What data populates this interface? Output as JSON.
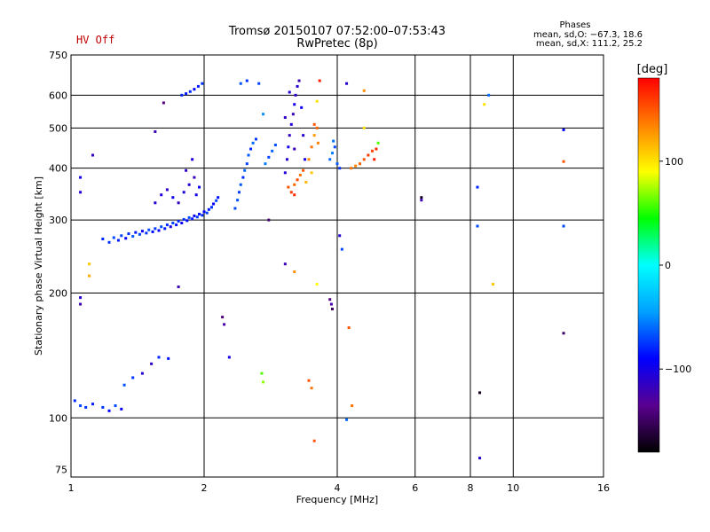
{
  "header": {
    "title": "Tromsø 20150107 07:52:00–07:53:43",
    "subtitle": "RwPretec (8p)",
    "status": "HV Off",
    "phases_title": "Phases",
    "phases_o": "mean, sd,O: −67.3, 18.6",
    "phases_x": "mean, sd,X: 111.2, 25.2"
  },
  "chart_data": {
    "type": "scatter",
    "xlabel": "Frequency [MHz]",
    "ylabel": "Stationary phase Virtual Height [km]",
    "xscale": "log",
    "yscale": "log",
    "xlim": [
      1,
      16
    ],
    "ylim": [
      72,
      750
    ],
    "xticks": [
      1,
      2,
      4,
      6,
      8,
      10,
      16
    ],
    "xtick_labels": [
      "1",
      "2",
      "4",
      "6",
      "8",
      "10",
      "16"
    ],
    "yticks": [
      75,
      100,
      200,
      300,
      400,
      500,
      600,
      750
    ],
    "ytick_labels": [
      "75",
      "100",
      "200",
      "300",
      "400",
      "500",
      "600",
      "750"
    ],
    "grid": true,
    "colorbar": {
      "label": "[deg]",
      "min": -180,
      "max": 180,
      "ticks": [
        100,
        0,
        -100
      ],
      "tick_labels": [
        "100",
        "0",
        "−100"
      ],
      "colormap": [
        "#000000",
        "#5a0090",
        "#0000ff",
        "#00a0ff",
        "#00ffff",
        "#00ff00",
        "#ffff00",
        "#ff8000",
        "#ff0000"
      ]
    },
    "points": [
      {
        "x": 1.18,
        "y": 270,
        "phase": -80
      },
      {
        "x": 1.22,
        "y": 265,
        "phase": -75
      },
      {
        "x": 1.25,
        "y": 272,
        "phase": -70
      },
      {
        "x": 1.28,
        "y": 268,
        "phase": -82
      },
      {
        "x": 1.3,
        "y": 275,
        "phase": -72
      },
      {
        "x": 1.33,
        "y": 271,
        "phase": -90
      },
      {
        "x": 1.35,
        "y": 278,
        "phase": -78
      },
      {
        "x": 1.38,
        "y": 274,
        "phase": -65
      },
      {
        "x": 1.4,
        "y": 280,
        "phase": -85
      },
      {
        "x": 1.43,
        "y": 277,
        "phase": -70
      },
      {
        "x": 1.45,
        "y": 282,
        "phase": -95
      },
      {
        "x": 1.48,
        "y": 279,
        "phase": -76
      },
      {
        "x": 1.5,
        "y": 284,
        "phase": -68
      },
      {
        "x": 1.53,
        "y": 281,
        "phase": -88
      },
      {
        "x": 1.55,
        "y": 286,
        "phase": -74
      },
      {
        "x": 1.58,
        "y": 283,
        "phase": -92
      },
      {
        "x": 1.6,
        "y": 289,
        "phase": -70
      },
      {
        "x": 1.63,
        "y": 286,
        "phase": -84
      },
      {
        "x": 1.65,
        "y": 292,
        "phase": -78
      },
      {
        "x": 1.68,
        "y": 289,
        "phase": -100
      },
      {
        "x": 1.7,
        "y": 295,
        "phase": -72
      },
      {
        "x": 1.73,
        "y": 292,
        "phase": -86
      },
      {
        "x": 1.75,
        "y": 298,
        "phase": -80
      },
      {
        "x": 1.78,
        "y": 295,
        "phase": -94
      },
      {
        "x": 1.8,
        "y": 301,
        "phase": -76
      },
      {
        "x": 1.83,
        "y": 299,
        "phase": -88
      },
      {
        "x": 1.85,
        "y": 304,
        "phase": -70
      },
      {
        "x": 1.88,
        "y": 302,
        "phase": -82
      },
      {
        "x": 1.9,
        "y": 307,
        "phase": -96
      },
      {
        "x": 1.93,
        "y": 305,
        "phase": -74
      },
      {
        "x": 1.95,
        "y": 310,
        "phase": -86
      },
      {
        "x": 1.98,
        "y": 308,
        "phase": -78
      },
      {
        "x": 2.0,
        "y": 314,
        "phase": -90
      },
      {
        "x": 2.03,
        "y": 312,
        "phase": -72
      },
      {
        "x": 2.05,
        "y": 318,
        "phase": -84
      },
      {
        "x": 2.08,
        "y": 322,
        "phase": -76
      },
      {
        "x": 2.1,
        "y": 328,
        "phase": -92
      },
      {
        "x": 2.13,
        "y": 334,
        "phase": -70
      },
      {
        "x": 2.15,
        "y": 340,
        "phase": -86
      },
      {
        "x": 1.55,
        "y": 330,
        "phase": -110
      },
      {
        "x": 1.6,
        "y": 345,
        "phase": -105
      },
      {
        "x": 1.65,
        "y": 355,
        "phase": -112
      },
      {
        "x": 1.7,
        "y": 340,
        "phase": -98
      },
      {
        "x": 1.75,
        "y": 330,
        "phase": -115
      },
      {
        "x": 1.8,
        "y": 350,
        "phase": -102
      },
      {
        "x": 1.85,
        "y": 365,
        "phase": -108
      },
      {
        "x": 1.9,
        "y": 380,
        "phase": -118
      },
      {
        "x": 1.95,
        "y": 360,
        "phase": -96
      },
      {
        "x": 1.82,
        "y": 395,
        "phase": -112
      },
      {
        "x": 1.88,
        "y": 420,
        "phase": -104
      },
      {
        "x": 1.92,
        "y": 345,
        "phase": -100
      },
      {
        "x": 1.78,
        "y": 600,
        "phase": -80
      },
      {
        "x": 1.82,
        "y": 605,
        "phase": -85
      },
      {
        "x": 1.86,
        "y": 612,
        "phase": -78
      },
      {
        "x": 1.9,
        "y": 620,
        "phase": -90
      },
      {
        "x": 1.94,
        "y": 630,
        "phase": -82
      },
      {
        "x": 1.98,
        "y": 640,
        "phase": -76
      },
      {
        "x": 2.35,
        "y": 320,
        "phase": -70
      },
      {
        "x": 2.38,
        "y": 335,
        "phase": -68
      },
      {
        "x": 2.4,
        "y": 350,
        "phase": -74
      },
      {
        "x": 2.42,
        "y": 365,
        "phase": -66
      },
      {
        "x": 2.45,
        "y": 380,
        "phase": -78
      },
      {
        "x": 2.47,
        "y": 395,
        "phase": -62
      },
      {
        "x": 2.5,
        "y": 410,
        "phase": -72
      },
      {
        "x": 2.52,
        "y": 430,
        "phase": -65
      },
      {
        "x": 2.55,
        "y": 445,
        "phase": -80
      },
      {
        "x": 2.58,
        "y": 460,
        "phase": -60
      },
      {
        "x": 2.62,
        "y": 470,
        "phase": -75
      },
      {
        "x": 2.66,
        "y": 640,
        "phase": -70
      },
      {
        "x": 2.5,
        "y": 650,
        "phase": -78
      },
      {
        "x": 2.42,
        "y": 640,
        "phase": -66
      },
      {
        "x": 2.75,
        "y": 410,
        "phase": -55
      },
      {
        "x": 2.8,
        "y": 425,
        "phase": -70
      },
      {
        "x": 2.85,
        "y": 440,
        "phase": -62
      },
      {
        "x": 2.9,
        "y": 455,
        "phase": -68
      },
      {
        "x": 2.72,
        "y": 540,
        "phase": -50
      },
      {
        "x": 3.05,
        "y": 390,
        "phase": -105
      },
      {
        "x": 3.08,
        "y": 420,
        "phase": -110
      },
      {
        "x": 3.1,
        "y": 450,
        "phase": -98
      },
      {
        "x": 3.12,
        "y": 480,
        "phase": -115
      },
      {
        "x": 3.15,
        "y": 510,
        "phase": -104
      },
      {
        "x": 3.18,
        "y": 540,
        "phase": -118
      },
      {
        "x": 3.2,
        "y": 570,
        "phase": -100
      },
      {
        "x": 3.22,
        "y": 600,
        "phase": -112
      },
      {
        "x": 3.25,
        "y": 630,
        "phase": -108
      },
      {
        "x": 3.28,
        "y": 650,
        "phase": -120
      },
      {
        "x": 3.32,
        "y": 560,
        "phase": -96
      },
      {
        "x": 3.35,
        "y": 480,
        "phase": -110
      },
      {
        "x": 3.38,
        "y": 420,
        "phase": -102
      },
      {
        "x": 3.05,
        "y": 530,
        "phase": -114
      },
      {
        "x": 3.12,
        "y": 610,
        "phase": -106
      },
      {
        "x": 3.2,
        "y": 445,
        "phase": -118
      },
      {
        "x": 3.1,
        "y": 360,
        "phase": 150
      },
      {
        "x": 3.15,
        "y": 350,
        "phase": 160
      },
      {
        "x": 3.2,
        "y": 365,
        "phase": 145
      },
      {
        "x": 3.25,
        "y": 375,
        "phase": 155
      },
      {
        "x": 3.3,
        "y": 385,
        "phase": 140
      },
      {
        "x": 3.35,
        "y": 395,
        "phase": 150
      },
      {
        "x": 3.2,
        "y": 345,
        "phase": 165
      },
      {
        "x": 3.45,
        "y": 420,
        "phase": 130
      },
      {
        "x": 3.5,
        "y": 450,
        "phase": 140
      },
      {
        "x": 3.55,
        "y": 480,
        "phase": 125
      },
      {
        "x": 3.6,
        "y": 500,
        "phase": 145
      },
      {
        "x": 3.5,
        "y": 390,
        "phase": 110
      },
      {
        "x": 3.55,
        "y": 510,
        "phase": 150
      },
      {
        "x": 3.6,
        "y": 580,
        "phase": 100
      },
      {
        "x": 3.65,
        "y": 650,
        "phase": 170
      },
      {
        "x": 3.4,
        "y": 370,
        "phase": 115
      },
      {
        "x": 3.62,
        "y": 460,
        "phase": 135
      },
      {
        "x": 3.85,
        "y": 420,
        "phase": -60
      },
      {
        "x": 3.9,
        "y": 435,
        "phase": -55
      },
      {
        "x": 3.95,
        "y": 450,
        "phase": -70
      },
      {
        "x": 4.0,
        "y": 410,
        "phase": -65
      },
      {
        "x": 4.05,
        "y": 400,
        "phase": -75
      },
      {
        "x": 3.92,
        "y": 465,
        "phase": -58
      },
      {
        "x": 4.3,
        "y": 400,
        "phase": 140
      },
      {
        "x": 4.4,
        "y": 405,
        "phase": 135
      },
      {
        "x": 4.5,
        "y": 410,
        "phase": 145
      },
      {
        "x": 4.6,
        "y": 420,
        "phase": 150
      },
      {
        "x": 4.7,
        "y": 430,
        "phase": 160
      },
      {
        "x": 4.8,
        "y": 440,
        "phase": 155
      },
      {
        "x": 4.9,
        "y": 445,
        "phase": 165
      },
      {
        "x": 4.85,
        "y": 420,
        "phase": 170
      },
      {
        "x": 4.95,
        "y": 460,
        "phase": 60
      },
      {
        "x": 4.6,
        "y": 500,
        "phase": 100
      },
      {
        "x": 4.2,
        "y": 640,
        "phase": -110
      },
      {
        "x": 4.6,
        "y": 615,
        "phase": 130
      },
      {
        "x": 1.05,
        "y": 380,
        "phase": -100
      },
      {
        "x": 1.05,
        "y": 350,
        "phase": -105
      },
      {
        "x": 1.05,
        "y": 195,
        "phase": -110
      },
      {
        "x": 1.05,
        "y": 188,
        "phase": -120
      },
      {
        "x": 1.1,
        "y": 235,
        "phase": 110
      },
      {
        "x": 1.1,
        "y": 220,
        "phase": 120
      },
      {
        "x": 1.12,
        "y": 430,
        "phase": -115
      },
      {
        "x": 1.55,
        "y": 490,
        "phase": -120
      },
      {
        "x": 1.62,
        "y": 575,
        "phase": -140
      },
      {
        "x": 1.02,
        "y": 110,
        "phase": -80
      },
      {
        "x": 1.05,
        "y": 107,
        "phase": -70
      },
      {
        "x": 1.08,
        "y": 106,
        "phase": -75
      },
      {
        "x": 1.12,
        "y": 108,
        "phase": -82
      },
      {
        "x": 1.18,
        "y": 106,
        "phase": -76
      },
      {
        "x": 1.22,
        "y": 104,
        "phase": -88
      },
      {
        "x": 1.26,
        "y": 107,
        "phase": -70
      },
      {
        "x": 1.3,
        "y": 105,
        "phase": -95
      },
      {
        "x": 1.32,
        "y": 120,
        "phase": -68
      },
      {
        "x": 1.38,
        "y": 125,
        "phase": -74
      },
      {
        "x": 1.45,
        "y": 128,
        "phase": -110
      },
      {
        "x": 1.52,
        "y": 135,
        "phase": -115
      },
      {
        "x": 1.58,
        "y": 140,
        "phase": -80
      },
      {
        "x": 1.66,
        "y": 139,
        "phase": -85
      },
      {
        "x": 1.75,
        "y": 207,
        "phase": -120
      },
      {
        "x": 2.2,
        "y": 175,
        "phase": -140
      },
      {
        "x": 2.22,
        "y": 168,
        "phase": -125
      },
      {
        "x": 2.28,
        "y": 140,
        "phase": -100
      },
      {
        "x": 2.8,
        "y": 300,
        "phase": -145
      },
      {
        "x": 2.7,
        "y": 128,
        "phase": 60
      },
      {
        "x": 2.72,
        "y": 122,
        "phase": 70
      },
      {
        "x": 3.05,
        "y": 235,
        "phase": -120
      },
      {
        "x": 3.2,
        "y": 225,
        "phase": 130
      },
      {
        "x": 3.45,
        "y": 123,
        "phase": 150
      },
      {
        "x": 3.5,
        "y": 118,
        "phase": 140
      },
      {
        "x": 3.6,
        "y": 210,
        "phase": 90
      },
      {
        "x": 3.55,
        "y": 88,
        "phase": 150
      },
      {
        "x": 3.85,
        "y": 193,
        "phase": -140
      },
      {
        "x": 3.88,
        "y": 188,
        "phase": -125
      },
      {
        "x": 3.9,
        "y": 183,
        "phase": -150
      },
      {
        "x": 4.05,
        "y": 275,
        "phase": -110
      },
      {
        "x": 4.1,
        "y": 255,
        "phase": -70
      },
      {
        "x": 4.25,
        "y": 165,
        "phase": 150
      },
      {
        "x": 4.32,
        "y": 107,
        "phase": 140
      },
      {
        "x": 4.2,
        "y": 99,
        "phase": -60
      },
      {
        "x": 6.2,
        "y": 340,
        "phase": -170
      },
      {
        "x": 6.2,
        "y": 335,
        "phase": -120
      },
      {
        "x": 8.3,
        "y": 360,
        "phase": -80
      },
      {
        "x": 8.3,
        "y": 290,
        "phase": -70
      },
      {
        "x": 8.4,
        "y": 115,
        "phase": -170
      },
      {
        "x": 8.4,
        "y": 80,
        "phase": -110
      },
      {
        "x": 8.6,
        "y": 570,
        "phase": 100
      },
      {
        "x": 8.8,
        "y": 600,
        "phase": -60
      },
      {
        "x": 9.0,
        "y": 210,
        "phase": 110
      },
      {
        "x": 13.0,
        "y": 495,
        "phase": -90
      },
      {
        "x": 13.0,
        "y": 415,
        "phase": 150
      },
      {
        "x": 13.0,
        "y": 290,
        "phase": -70
      },
      {
        "x": 13.0,
        "y": 160,
        "phase": -150
      }
    ]
  }
}
